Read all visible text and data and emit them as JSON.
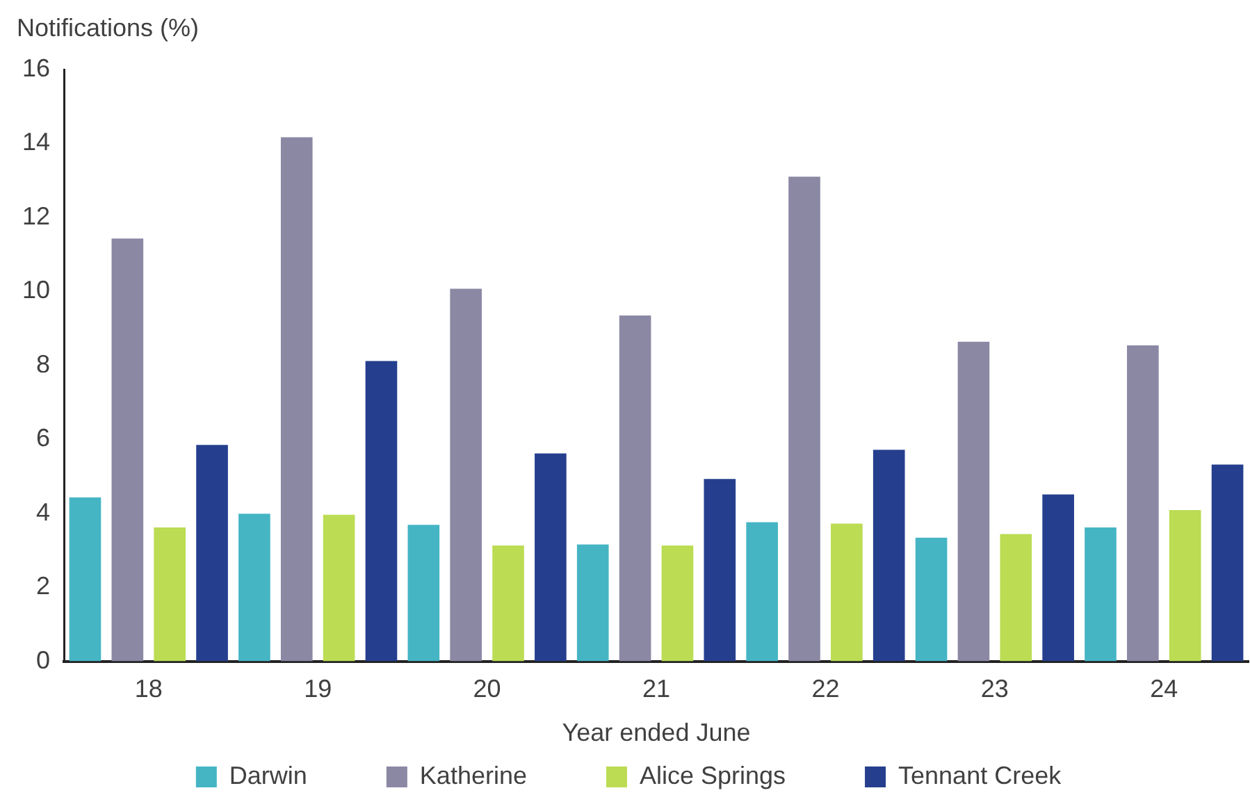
{
  "chart_data": {
    "type": "bar",
    "ylabel": "Notifications (%)",
    "xlabel": "Year ended June",
    "categories": [
      "18",
      "19",
      "20",
      "21",
      "22",
      "23",
      "24"
    ],
    "series": [
      {
        "name": "Darwin",
        "color": "#45b5c4",
        "values": [
          4.43,
          3.99,
          3.69,
          3.16,
          3.76,
          3.34,
          3.62
        ]
      },
      {
        "name": "Katherine",
        "color": "#8b88a4",
        "values": [
          11.43,
          14.17,
          10.07,
          9.35,
          13.1,
          8.64,
          8.54
        ]
      },
      {
        "name": "Alice Springs",
        "color": "#bbdc53",
        "values": [
          3.62,
          3.96,
          3.13,
          3.13,
          3.72,
          3.44,
          4.09
        ]
      },
      {
        "name": "Tennant Creek",
        "color": "#253f8e",
        "values": [
          5.85,
          8.12,
          5.62,
          4.93,
          5.72,
          4.51,
          5.32
        ]
      }
    ],
    "ylim": [
      0,
      16
    ],
    "yticks": [
      0,
      2,
      4,
      6,
      8,
      10,
      12,
      14,
      16
    ],
    "grid": false,
    "legend": "bottom"
  }
}
